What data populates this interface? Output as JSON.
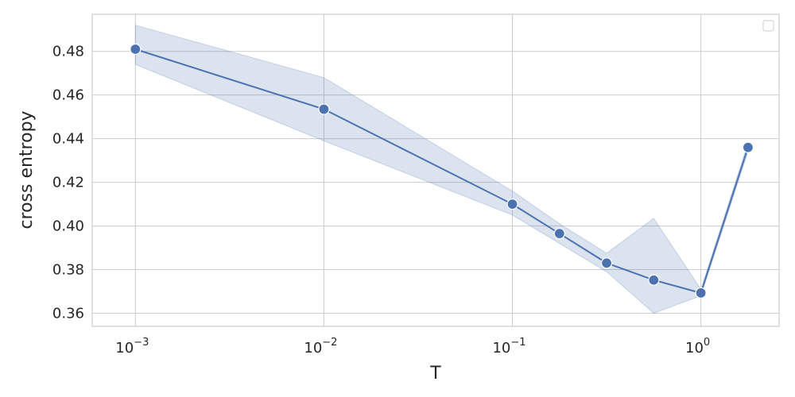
{
  "chart_data": {
    "type": "line",
    "title": "",
    "xlabel": "T",
    "ylabel": "cross entropy",
    "xscale": "log",
    "xlim": [
      0.00059,
      2.6
    ],
    "ylim": [
      0.354,
      0.497
    ],
    "grid": true,
    "legend": "top-right (empty)",
    "x_ticks": [
      {
        "value": 0.001,
        "base": "10",
        "exp": "−3"
      },
      {
        "value": 0.01,
        "base": "10",
        "exp": "−2"
      },
      {
        "value": 0.1,
        "base": "10",
        "exp": "−1"
      },
      {
        "value": 1,
        "base": "10",
        "exp": "0"
      }
    ],
    "y_ticks": [
      "0.36",
      "0.38",
      "0.40",
      "0.42",
      "0.44",
      "0.46",
      "0.48"
    ],
    "series": [
      {
        "color": "#4c72b0",
        "band_color": "#4c72b0",
        "points": [
          {
            "x": 0.001,
            "y": 0.481,
            "low": 0.474,
            "high": 0.492
          },
          {
            "x": 0.01,
            "y": 0.4535,
            "low": 0.439,
            "high": 0.468
          },
          {
            "x": 0.1,
            "y": 0.41,
            "low": 0.405,
            "high": 0.416
          },
          {
            "x": 0.1778,
            "y": 0.3965,
            "low": 0.392,
            "high": 0.401
          },
          {
            "x": 0.3162,
            "y": 0.383,
            "low": 0.379,
            "high": 0.3875
          },
          {
            "x": 0.5623,
            "y": 0.3752,
            "low": 0.36,
            "high": 0.4035
          },
          {
            "x": 1.0,
            "y": 0.3693,
            "low": 0.368,
            "high": 0.371
          },
          {
            "x": 1.7783,
            "y": 0.436,
            "low": 0.434,
            "high": 0.438
          }
        ]
      }
    ]
  }
}
